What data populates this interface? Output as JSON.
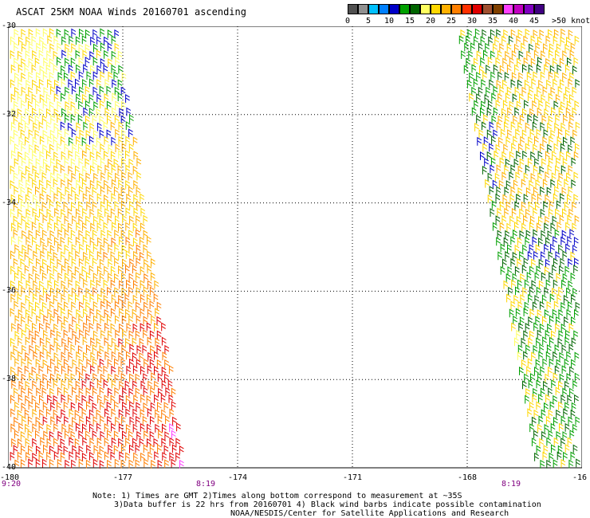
{
  "title": "ASCAT 25KM NOAA Winds 20160701 ascending",
  "legend": {
    "labels": [
      "0",
      "5",
      "10",
      "15",
      "20",
      "25",
      "30",
      "35",
      "40",
      "45",
      ">50 knots"
    ],
    "colors": [
      "#505050",
      "#909090",
      "#00c0ff",
      "#0080ff",
      "#0000c8",
      "#00a000",
      "#006400",
      "#ffff60",
      "#ffd700",
      "#ffb000",
      "#ff7f00",
      "#ff3000",
      "#e00000",
      "#a05030",
      "#804000",
      "#ff40ff",
      "#c000c0",
      "#8000c0",
      "#400080"
    ]
  },
  "map": {
    "lat_labels": [
      "-30",
      "-32",
      "-34",
      "-36",
      "-38",
      "-40"
    ],
    "lon_labels": [
      "-180",
      "-177",
      "-174",
      "-171",
      "-168",
      "-16"
    ],
    "lat_range": [
      -30,
      -40
    ],
    "lon_range": [
      -180,
      -165
    ],
    "gridlines": true,
    "swaths": [
      {
        "name": "west",
        "time_labels": [
          "9:20",
          "8:19"
        ],
        "lon_edges_top": [
          -180,
          -177.1
        ],
        "lon_edges_bottom": [
          -180,
          -175.3
        ]
      },
      {
        "name": "east",
        "time_labels": [
          "8:19"
        ],
        "lon_edges_top": [
          -168.3,
          -165
        ],
        "lon_edges_bottom": [
          -166.2,
          -165
        ]
      }
    ]
  },
  "notes": [
    "Note: 1) Times are GMT 2)Times along bottom correspond to measurement at ~35S",
    "3)Data buffer is 22 hrs from 20160701 4) Black wind barbs indicate possible contamination",
    "NOAA/NESDIS/Center for Satellite Applications and Research"
  ]
}
